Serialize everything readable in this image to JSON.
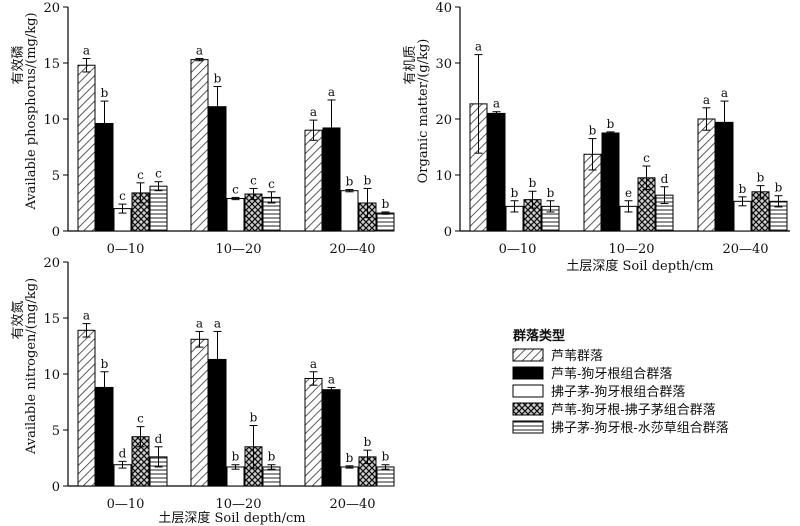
{
  "chart_data": [
    {
      "type": "bar",
      "ylabel_cn": "有效磷",
      "ylabel": "Available phosphorus/(mg/kg)",
      "xlabel": "",
      "categories": [
        "0—10",
        "10—20",
        "20—40"
      ],
      "ylim": [
        0,
        20
      ],
      "yticks": [
        0,
        5,
        10,
        15,
        20
      ],
      "series": [
        {
          "values": [
            14.8,
            15.3,
            9.0
          ],
          "errors": [
            0.6,
            0.1,
            0.9
          ],
          "letters": [
            "a",
            "a",
            "a"
          ]
        },
        {
          "values": [
            9.6,
            11.1,
            9.2
          ],
          "errors": [
            2.0,
            1.8,
            2.5
          ],
          "letters": [
            "b",
            "b",
            "a"
          ]
        },
        {
          "values": [
            2.0,
            2.9,
            3.6
          ],
          "errors": [
            0.4,
            0.1,
            0.1
          ],
          "letters": [
            "c",
            "c",
            "b"
          ]
        },
        {
          "values": [
            3.4,
            3.3,
            2.5
          ],
          "errors": [
            0.9,
            0.5,
            1.3
          ],
          "letters": [
            "c",
            "c",
            "b"
          ]
        },
        {
          "values": [
            4.0,
            3.0,
            1.6
          ],
          "errors": [
            0.4,
            0.5,
            0.1
          ],
          "letters": [
            "c",
            "c",
            "b"
          ]
        }
      ]
    },
    {
      "type": "bar",
      "ylabel_cn": "有机质",
      "ylabel": "Organic matter/(g/kg)",
      "xlabel": "土层深度 Soil depth/cm",
      "categories": [
        "0—10",
        "10—20",
        "20—40"
      ],
      "ylim": [
        0,
        40
      ],
      "yticks": [
        0,
        10,
        20,
        30,
        40
      ],
      "series": [
        {
          "values": [
            22.7,
            13.7,
            20.0
          ],
          "errors": [
            8.8,
            2.8,
            2.0
          ],
          "letters": [
            "a",
            "b",
            "a"
          ]
        },
        {
          "values": [
            21.0,
            17.5,
            19.4
          ],
          "errors": [
            0.3,
            0.2,
            3.8
          ],
          "letters": [
            "a",
            "b",
            "a"
          ]
        },
        {
          "values": [
            4.4,
            4.4,
            5.3
          ],
          "errors": [
            1.0,
            1.0,
            0.8
          ],
          "letters": [
            "b",
            "e",
            "b"
          ]
        },
        {
          "values": [
            5.6,
            9.5,
            7.0
          ],
          "errors": [
            1.5,
            2.1,
            1.1
          ],
          "letters": [
            "b",
            "c",
            "b"
          ]
        },
        {
          "values": [
            4.4,
            6.4,
            5.3
          ],
          "errors": [
            1.0,
            1.5,
            1.0
          ],
          "letters": [
            "b",
            "d",
            "b"
          ]
        }
      ]
    },
    {
      "type": "bar",
      "ylabel_cn": "有效氮",
      "ylabel": "Available nitrogen/(mg/kg)",
      "xlabel": "土层深度 Soil depth/cm",
      "categories": [
        "0—10",
        "10—20",
        "20—40"
      ],
      "ylim": [
        0,
        20
      ],
      "yticks": [
        0,
        5,
        10,
        15,
        20
      ],
      "series": [
        {
          "values": [
            13.9,
            13.1,
            9.6
          ],
          "errors": [
            0.6,
            0.7,
            0.6
          ],
          "letters": [
            "a",
            "a",
            "a"
          ]
        },
        {
          "values": [
            8.8,
            11.3,
            8.6
          ],
          "errors": [
            1.4,
            2.5,
            0.2
          ],
          "letters": [
            "b",
            "a",
            "a"
          ]
        },
        {
          "values": [
            1.9,
            1.7,
            1.7
          ],
          "errors": [
            0.3,
            0.2,
            0.1
          ],
          "letters": [
            "d",
            "b",
            "b"
          ]
        },
        {
          "values": [
            4.4,
            3.5,
            2.6
          ],
          "errors": [
            0.9,
            1.9,
            0.6
          ],
          "letters": [
            "c",
            "b",
            "b"
          ]
        },
        {
          "values": [
            2.6,
            1.7,
            1.7
          ],
          "errors": [
            0.9,
            0.2,
            0.2
          ],
          "letters": [
            "d",
            "b",
            "b"
          ]
        }
      ]
    }
  ],
  "legend": {
    "title": "群落类型",
    "placement": "bottom-right",
    "items": [
      {
        "label": "芦苇群落",
        "pattern": "diagonal-hatch"
      },
      {
        "label": "芦苇-狗牙根组合群落",
        "pattern": "solid-black"
      },
      {
        "label": "拂子茅-狗牙根组合群落",
        "pattern": "white"
      },
      {
        "label": "芦苇-狗牙根-拂子茅组合群落",
        "pattern": "crosshatch"
      },
      {
        "label": "拂子茅-狗牙根-水莎草组合群落",
        "pattern": "horizontal-lines"
      }
    ]
  }
}
